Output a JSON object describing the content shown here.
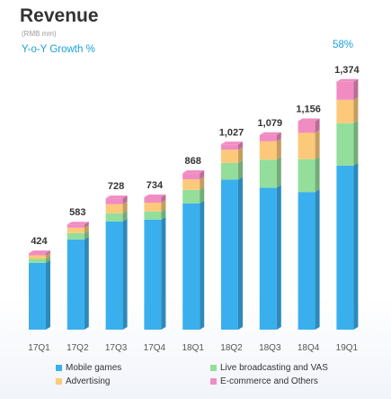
{
  "header": {
    "title": "Revenue",
    "subtitle": "(RMB mm)",
    "growth_label": "Y-o-Y Growth %",
    "growth_value": "58%"
  },
  "colors": {
    "mobile_games": "#3aafee",
    "live_broadcasting": "#92de9a",
    "advertising": "#fcc97a",
    "ecommerce": "#f08cc2"
  },
  "chart_data": {
    "type": "bar",
    "stacked": true,
    "categories": [
      "17Q1",
      "17Q2",
      "17Q3",
      "17Q4",
      "18Q1",
      "18Q2",
      "18Q3",
      "18Q4",
      "19Q1"
    ],
    "totals": [
      "424",
      "583",
      "728",
      "734",
      "868",
      "1,027",
      "1,079",
      "1,156",
      "1,374"
    ],
    "series": [
      {
        "name": "Mobile games",
        "color": "#3aafee",
        "values": [
          370,
          500,
          600,
          610,
          700,
          832,
          787,
          763,
          909
        ]
      },
      {
        "name": "Live broadcasting and VAS",
        "color": "#92de9a",
        "values": [
          22,
          35,
          45,
          45,
          75,
          92,
          155,
          182,
          235
        ]
      },
      {
        "name": "Advertising",
        "color": "#fcc97a",
        "values": [
          20,
          30,
          50,
          49,
          58,
          73,
          102,
          146,
          130
        ]
      },
      {
        "name": "E-commerce and Others",
        "color": "#f08cc2",
        "values": [
          12,
          18,
          33,
          30,
          35,
          30,
          35,
          65,
          100
        ]
      }
    ],
    "ylim": [
      0,
      1500
    ],
    "grid": false,
    "legend_position": "bottom"
  }
}
